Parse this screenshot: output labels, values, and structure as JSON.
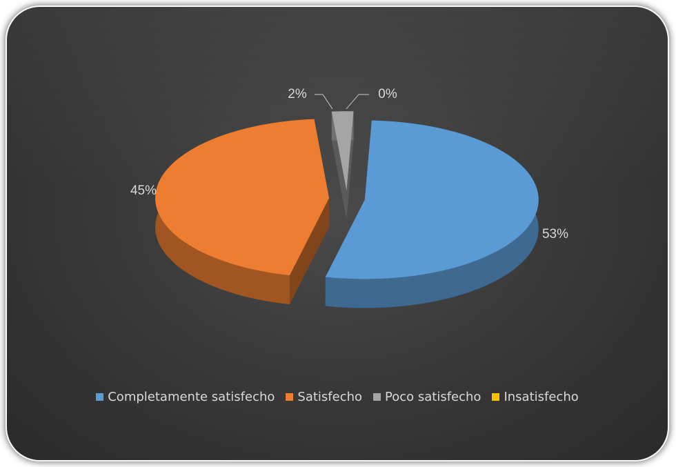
{
  "chart_data": {
    "type": "pie",
    "style": "3d-exploded",
    "categories": [
      "Completamente satisfecho",
      "Satisfecho",
      "Poco satisfecho",
      "Insatisfecho"
    ],
    "values": [
      53,
      45,
      2,
      0
    ],
    "data_labels": [
      "53%",
      "45%",
      "2%",
      "0%"
    ],
    "colors": [
      "#5b9bd5",
      "#ed7d31",
      "#a5a5a5",
      "#ffc000"
    ],
    "legend_position": "bottom",
    "title": ""
  },
  "legend": {
    "items": [
      {
        "label": "Completamente satisfecho",
        "color": "#5b9bd5"
      },
      {
        "label": "Satisfecho",
        "color": "#ed7d31"
      },
      {
        "label": "Poco satisfecho",
        "color": "#a5a5a5"
      },
      {
        "label": "Insatisfecho",
        "color": "#ffc000"
      }
    ]
  }
}
